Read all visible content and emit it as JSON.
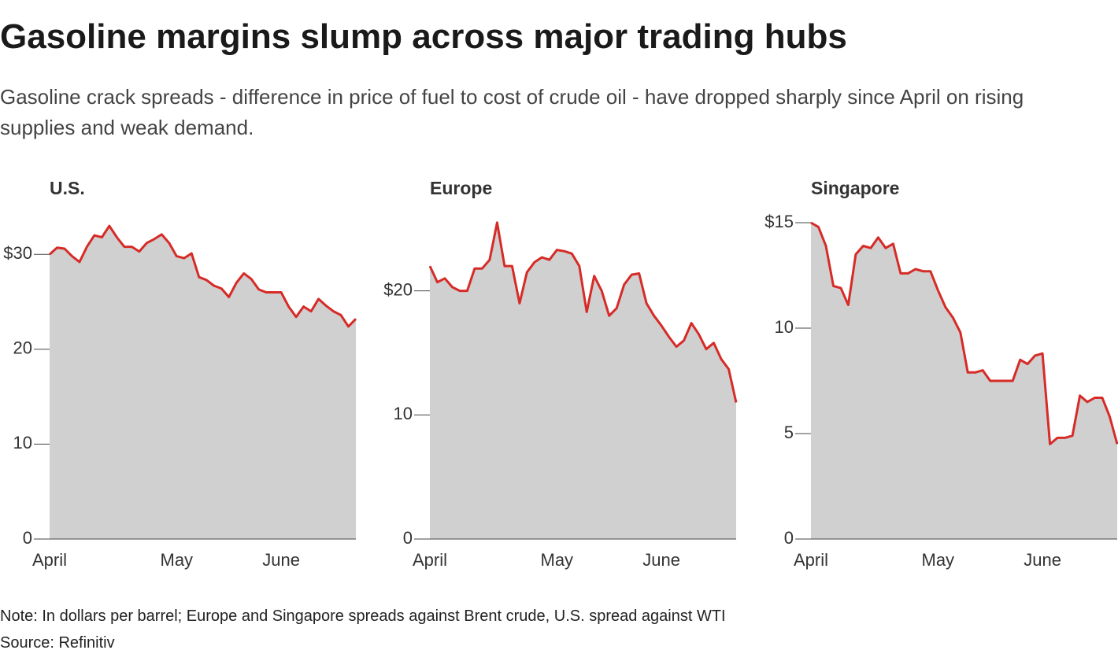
{
  "title": "Gasoline margins slump across major trading hubs",
  "subtitle": "Gasoline crack spreads - difference in price of fuel to cost of crude oil - have dropped sharply since April on rising supplies and weak demand.",
  "note": "Note: In dollars per barrel; Europe and Singapore spreads against Brent crude, U.S. spread against WTI",
  "source": "Source: Refinitiv",
  "chart_data": [
    {
      "type": "area",
      "title": "U.S.",
      "color": "#d62b27",
      "fill": "#d0d0d0",
      "categories": [
        "April",
        null,
        null,
        null,
        null,
        null,
        null,
        null,
        null,
        null,
        null,
        null,
        null,
        null,
        null,
        null,
        null,
        "May",
        null,
        null,
        null,
        null,
        null,
        null,
        null,
        null,
        null,
        null,
        null,
        null,
        null,
        "June",
        null,
        null,
        null,
        null,
        null,
        null,
        null,
        null,
        null,
        null
      ],
      "values": [
        30.0,
        30.7,
        30.6,
        29.8,
        29.2,
        30.8,
        32.0,
        31.8,
        33.0,
        31.8,
        30.8,
        30.8,
        30.3,
        31.2,
        31.6,
        32.1,
        31.2,
        29.8,
        29.6,
        30.1,
        27.6,
        27.3,
        26.7,
        26.4,
        25.5,
        27.0,
        28.0,
        27.4,
        26.3,
        26.0,
        26.0,
        26.0,
        24.5,
        23.4,
        24.5,
        24.0,
        25.3,
        24.6,
        24.0,
        23.6,
        22.4,
        23.2
      ],
      "ylim": [
        0,
        34
      ],
      "yticks": [
        0,
        10,
        20,
        {
          "value": 30,
          "label": "$30"
        }
      ]
    },
    {
      "type": "area",
      "title": "Europe",
      "color": "#d62b27",
      "fill": "#d0d0d0",
      "categories": [
        "April",
        null,
        null,
        null,
        null,
        null,
        null,
        null,
        null,
        null,
        null,
        null,
        null,
        null,
        null,
        null,
        null,
        "May",
        null,
        null,
        null,
        null,
        null,
        null,
        null,
        null,
        null,
        null,
        null,
        null,
        null,
        "June",
        null,
        null,
        null,
        null,
        null,
        null,
        null,
        null,
        null,
        null
      ],
      "values": [
        22.0,
        20.7,
        21.0,
        20.3,
        20.0,
        20.0,
        21.8,
        21.8,
        22.5,
        25.5,
        22.0,
        22.0,
        19.0,
        21.5,
        22.3,
        22.7,
        22.5,
        23.3,
        23.2,
        23.0,
        22.0,
        18.3,
        21.2,
        20.0,
        18.0,
        18.6,
        20.5,
        21.3,
        21.4,
        19.0,
        18.0,
        17.2,
        16.3,
        15.5,
        16.0,
        17.4,
        16.5,
        15.3,
        15.8,
        14.5,
        13.7,
        11.0
      ],
      "ylim": [
        0,
        26
      ],
      "yticks": [
        0,
        10,
        {
          "value": 20,
          "label": "$20"
        }
      ]
    },
    {
      "type": "area",
      "title": "Singapore",
      "color": "#d62b27",
      "fill": "#d0d0d0",
      "categories": [
        "April",
        null,
        null,
        null,
        null,
        null,
        null,
        null,
        null,
        null,
        null,
        null,
        null,
        null,
        null,
        null,
        null,
        "May",
        null,
        null,
        null,
        null,
        null,
        null,
        null,
        null,
        null,
        null,
        null,
        null,
        null,
        "June",
        null,
        null,
        null,
        null,
        null,
        null,
        null,
        null,
        null,
        null
      ],
      "values": [
        15.0,
        14.8,
        13.9,
        12.0,
        11.9,
        11.1,
        13.5,
        13.9,
        13.8,
        14.3,
        13.8,
        14.0,
        12.6,
        12.6,
        12.8,
        12.7,
        12.7,
        11.8,
        11.0,
        10.5,
        9.8,
        7.9,
        7.9,
        8.0,
        7.5,
        7.5,
        7.5,
        7.5,
        8.5,
        8.3,
        8.7,
        8.8,
        4.5,
        4.8,
        4.8,
        4.9,
        6.8,
        6.5,
        6.7,
        6.7,
        5.8,
        4.5
      ],
      "ylim": [
        0,
        15.3
      ],
      "yticks": [
        0,
        5,
        10,
        {
          "value": 15,
          "label": "$15"
        }
      ]
    }
  ]
}
